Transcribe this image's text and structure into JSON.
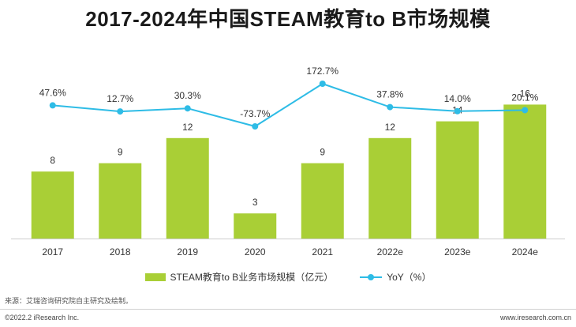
{
  "page": {
    "title": "2017-2024年中国STEAM教育to B市场规模",
    "source": "来源：艾瑞咨询研究院自主研究及绘制。",
    "copyright": "©2022.2 iResearch Inc.",
    "website": "www.iresearch.com.cn"
  },
  "chart_data": {
    "type": "bar",
    "title": "2017-2024年中国STEAM教育to B市场规模",
    "categories": [
      "2017",
      "2018",
      "2019",
      "2020",
      "2021",
      "2022e",
      "2023e",
      "2024e"
    ],
    "series": [
      {
        "name": "STEAM教育to B业务市场规模（亿元）",
        "type": "bar",
        "color": "#a9cf36",
        "values": [
          8,
          9,
          12,
          3,
          9,
          12,
          14,
          16
        ],
        "labels": [
          "8",
          "9",
          "12",
          "3",
          "9",
          "12",
          "14",
          "16"
        ]
      },
      {
        "name": "YoY（%）",
        "type": "line",
        "color": "#2ebce6",
        "values": [
          47.6,
          12.7,
          30.3,
          -73.7,
          172.7,
          37.8,
          14.0,
          20.1
        ],
        "labels": [
          "47.6%",
          "12.7%",
          "30.3%",
          "-73.7%",
          "172.7%",
          "37.8%",
          "14.0%",
          "20.1%"
        ]
      }
    ],
    "ylim": [
      0,
      20
    ],
    "y2lim": [
      -390,
      200
    ],
    "xlabel": "",
    "ylabel": "",
    "grid": false,
    "legend": "bottom"
  }
}
